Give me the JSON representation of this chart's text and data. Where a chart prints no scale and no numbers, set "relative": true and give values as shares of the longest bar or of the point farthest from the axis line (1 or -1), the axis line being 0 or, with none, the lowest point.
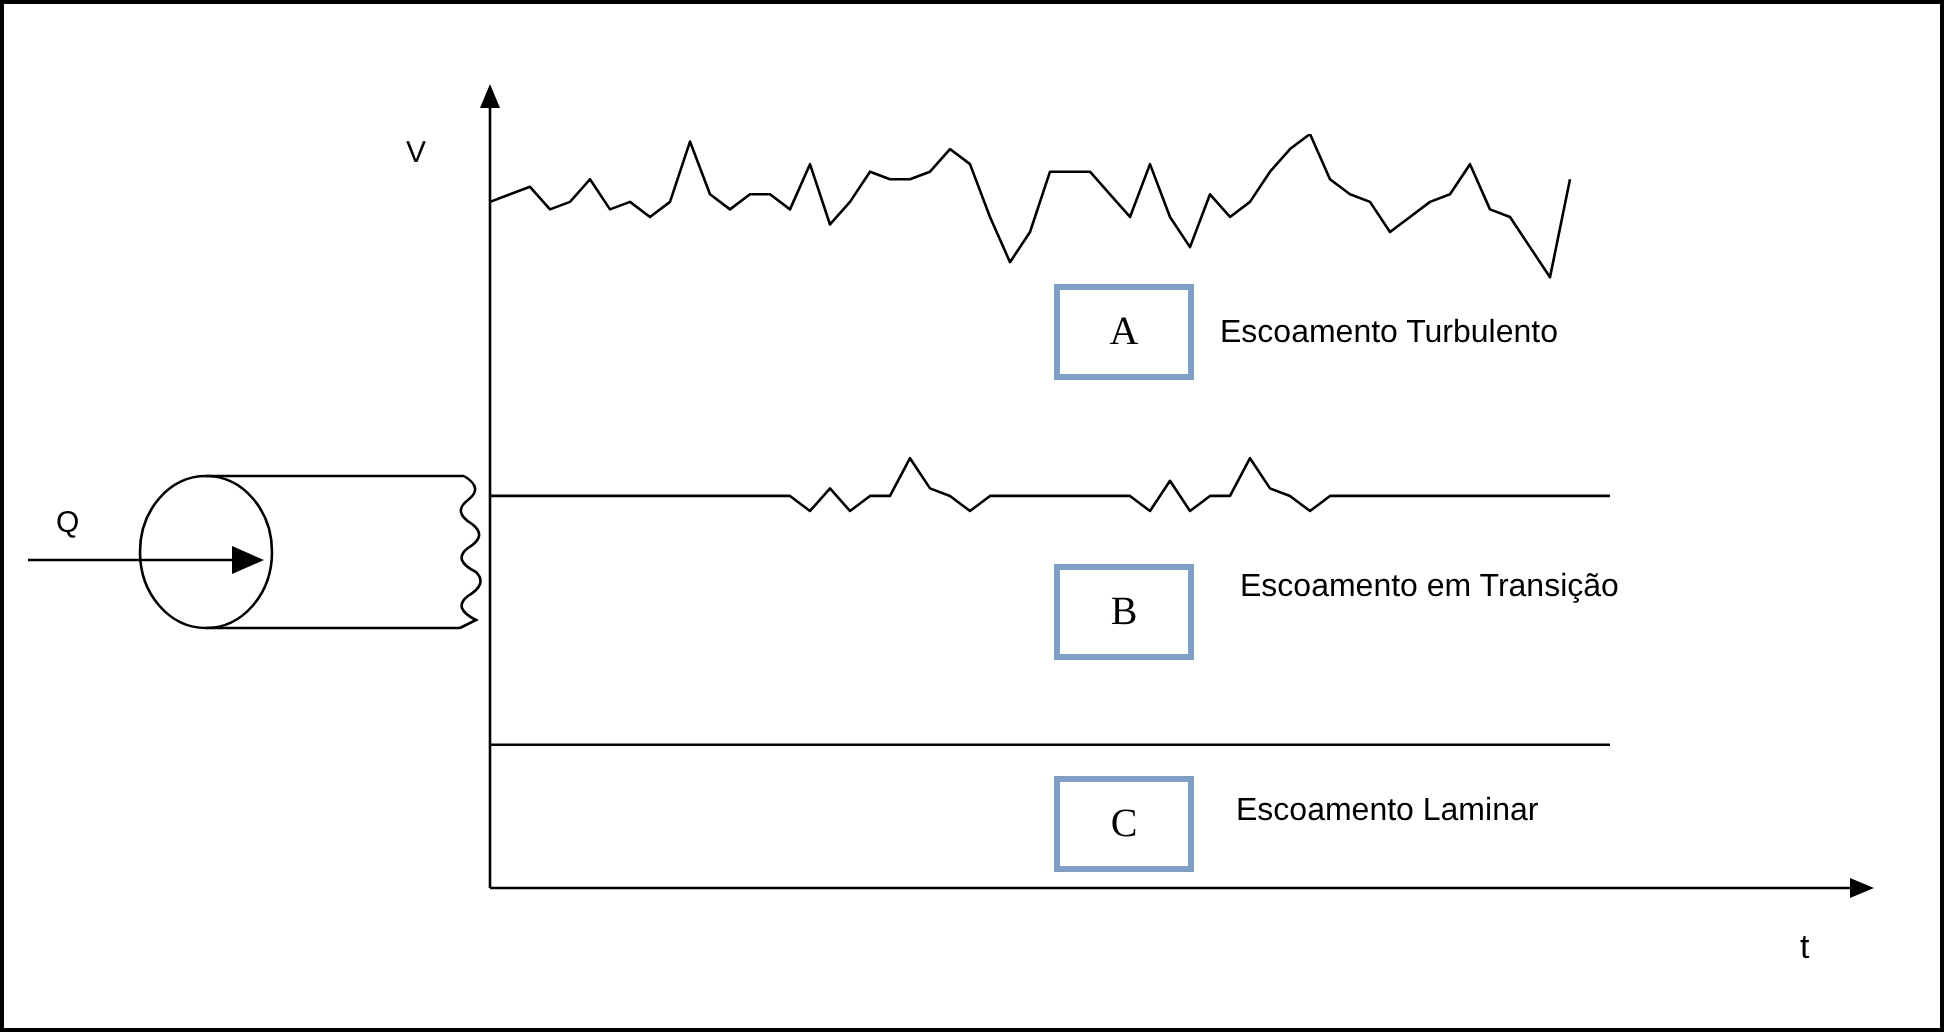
{
  "chart_data": {
    "type": "line",
    "relative": true,
    "xlabel": "t",
    "ylabel": "V",
    "legend": false,
    "marker": "none",
    "categories": [
      null,
      null,
      null,
      null,
      null,
      null,
      null,
      null,
      null,
      null,
      null,
      null,
      null,
      null,
      null,
      null,
      null,
      null,
      null,
      null,
      null,
      null,
      null,
      null,
      null,
      null,
      null,
      null,
      null,
      null,
      null,
      null,
      null,
      null,
      null,
      null,
      null,
      null,
      null,
      null,
      null,
      null,
      null,
      null,
      null,
      null,
      null,
      null,
      null,
      null,
      null,
      null,
      null,
      null,
      null,
      null,
      null,
      null,
      null,
      null,
      null,
      null,
      null,
      null,
      null,
      null,
      null,
      null,
      null,
      null
    ],
    "series": [
      {
        "name": "Escoamento Turbulento",
        "color": "#000000",
        "values": [
          0.91,
          0.92,
          0.93,
          0.9,
          0.91,
          0.94,
          0.9,
          0.91,
          0.89,
          0.91,
          0.99,
          0.92,
          0.9,
          0.92,
          0.92,
          0.9,
          0.96,
          0.88,
          0.91,
          0.95,
          0.94,
          0.94,
          0.95,
          0.98,
          0.96,
          0.89,
          0.83,
          0.87,
          0.95,
          0.95,
          0.95,
          0.92,
          0.89,
          0.96,
          0.89,
          0.85,
          0.92,
          0.89,
          0.91,
          0.95,
          0.98,
          1,
          0.94,
          0.92,
          0.91,
          0.87,
          0.89,
          0.91,
          0.92,
          0.96,
          0.9,
          0.89,
          0.85,
          0.81,
          0.94,
          null,
          null,
          null,
          null,
          null,
          null,
          null,
          null,
          null,
          null,
          null,
          null,
          null,
          null,
          null
        ]
      },
      {
        "name": "Escoamento em Transição",
        "color": "#000000",
        "values": [
          0.52,
          0.52,
          0.52,
          0.52,
          0.52,
          0.52,
          0.52,
          0.52,
          0.52,
          0.52,
          0.52,
          0.52,
          0.52,
          0.52,
          0.52,
          0.52,
          0.5,
          0.53,
          0.5,
          0.52,
          0.52,
          0.57,
          0.53,
          0.52,
          0.5,
          0.52,
          0.52,
          0.52,
          0.52,
          0.52,
          0.52,
          0.52,
          0.52,
          0.5,
          0.54,
          0.5,
          0.52,
          0.52,
          0.57,
          0.53,
          0.52,
          0.5,
          0.52,
          0.52,
          0.52,
          0.52,
          0.52,
          0.52,
          0.52,
          0.52,
          0.52,
          0.52,
          0.52,
          0.52,
          0.52,
          0.52,
          0.52,
          null,
          null,
          null,
          null,
          null,
          null,
          null,
          null,
          null,
          null,
          null,
          null,
          null
        ]
      },
      {
        "name": "Escoamento Laminar",
        "color": "#000000",
        "values": [
          0.19,
          0.19,
          0.19,
          0.19,
          0.19,
          0.19,
          0.19,
          0.19,
          0.19,
          0.19,
          0.19,
          0.19,
          0.19,
          0.19,
          0.19,
          0.19,
          0.19,
          0.19,
          0.19,
          0.19,
          0.19,
          0.19,
          0.19,
          0.19,
          0.19,
          0.19,
          0.19,
          0.19,
          0.19,
          0.19,
          0.19,
          0.19,
          0.19,
          0.19,
          0.19,
          0.19,
          0.19,
          0.19,
          0.19,
          0.19,
          0.19,
          0.19,
          0.19,
          0.19,
          0.19,
          0.19,
          0.19,
          0.19,
          0.19,
          0.19,
          0.19,
          0.19,
          0.19,
          0.19,
          0.19,
          0.19,
          0.19,
          null,
          null,
          null,
          null,
          null,
          null,
          null,
          null,
          null,
          null,
          null,
          null,
          null
        ]
      }
    ],
    "annotations": [
      "A",
      "B",
      "C",
      "Q"
    ]
  }
}
